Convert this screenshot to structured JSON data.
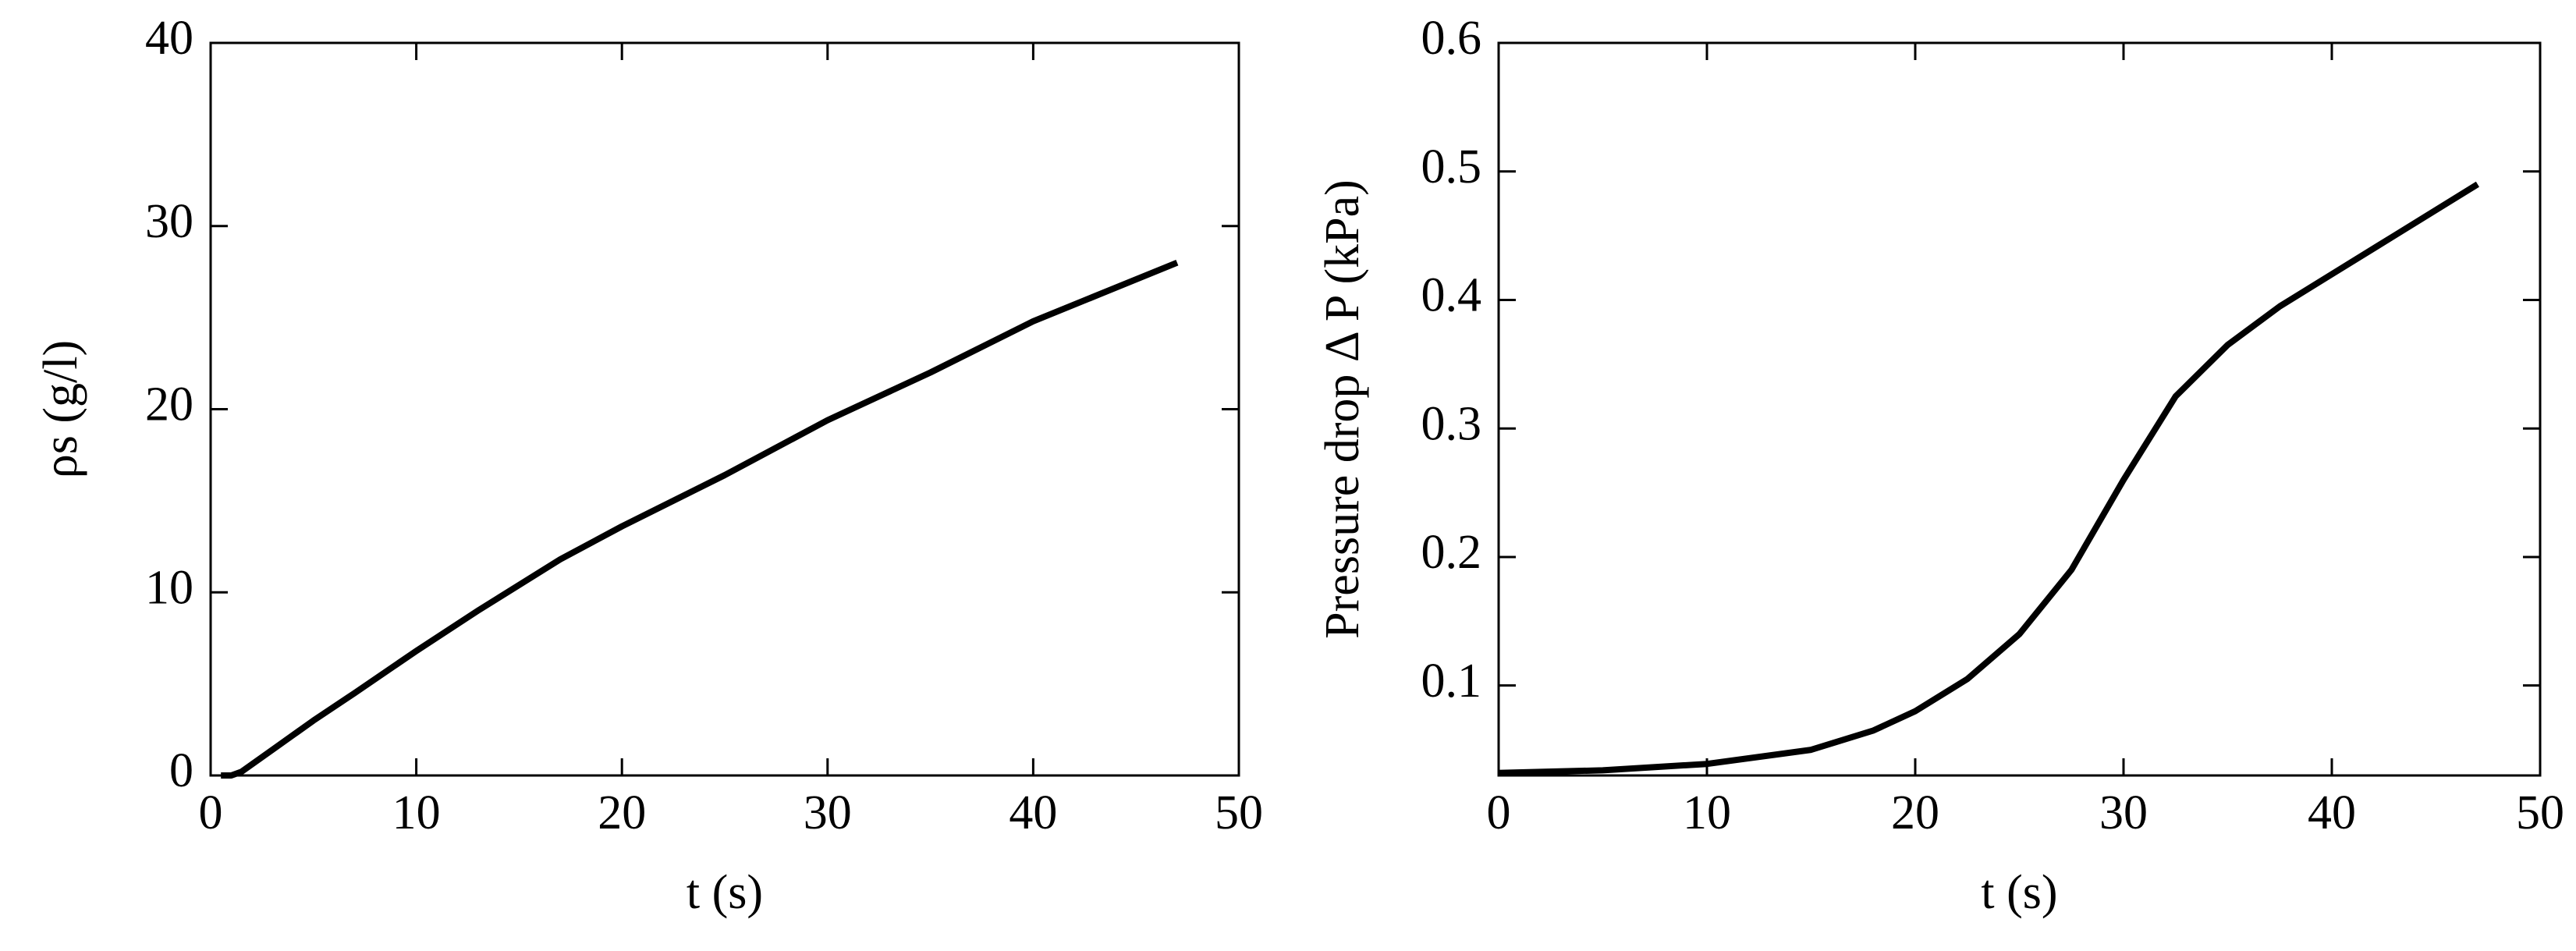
{
  "chart_data": [
    {
      "type": "line",
      "xlabel": "t (s)",
      "ylabel": "ρs (g/l)",
      "color": "#000000",
      "x": [
        0.5,
        1,
        1.5,
        2,
        3,
        4,
        5,
        7,
        10,
        13,
        17,
        20,
        25,
        30,
        35,
        40,
        47
      ],
      "values": [
        0,
        0,
        0.2,
        0.6,
        1.4,
        2.2,
        3,
        4.5,
        6.8,
        9,
        11.8,
        13.6,
        16.4,
        19.4,
        22,
        24.8,
        28
      ],
      "xlim": [
        0,
        50
      ],
      "xticks": [
        0,
        10,
        20,
        30,
        40,
        50
      ],
      "ylim": [
        0,
        40
      ],
      "yticks": [
        0,
        10,
        20,
        30,
        40
      ]
    },
    {
      "type": "line",
      "xlabel": "t (s)",
      "ylabel": "Pressure drop Δ P (kPa)",
      "color": "#000000",
      "x": [
        0,
        5,
        10,
        15,
        18,
        20,
        22.5,
        25,
        27.5,
        30,
        32.5,
        35,
        37.5,
        40,
        43,
        47
      ],
      "values": [
        0.032,
        0.034,
        0.039,
        0.05,
        0.065,
        0.08,
        0.105,
        0.14,
        0.19,
        0.26,
        0.325,
        0.365,
        0.395,
        0.42,
        0.45,
        0.49
      ],
      "xlim": [
        0,
        50
      ],
      "xticks": [
        0,
        10,
        20,
        30,
        40,
        50
      ],
      "ylim": [
        0.03,
        0.6
      ],
      "yticks": [
        0.1,
        0.2,
        0.3,
        0.4,
        0.5,
        0.6
      ]
    }
  ]
}
